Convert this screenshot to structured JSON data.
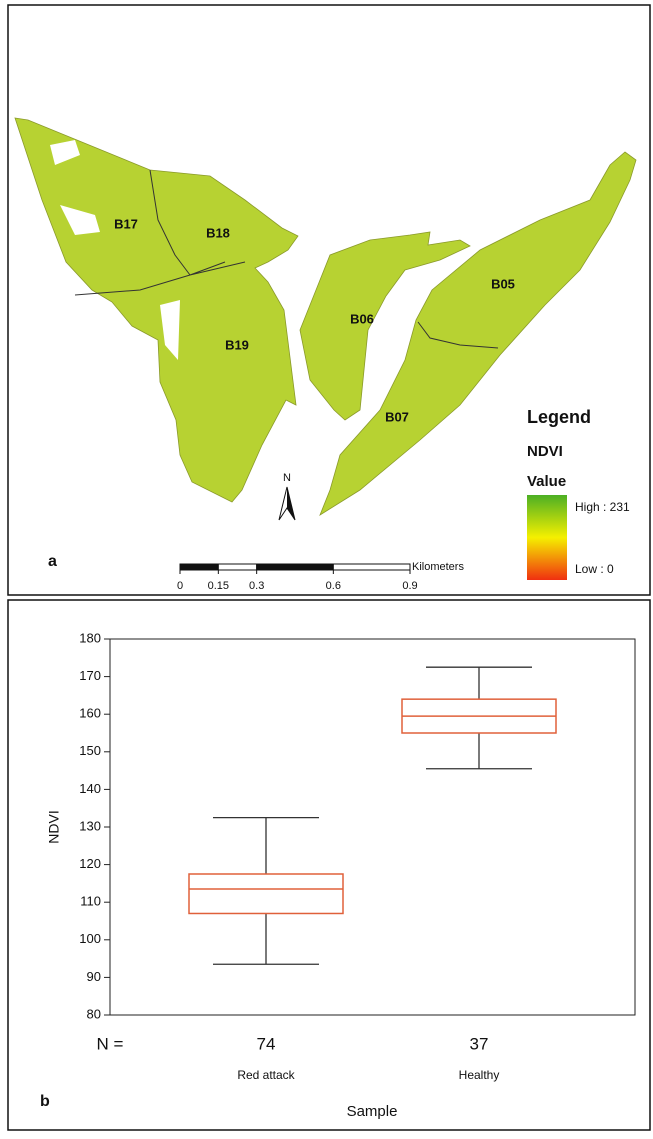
{
  "map": {
    "panel_label": "a",
    "blocks": [
      {
        "label": "B17"
      },
      {
        "label": "B18"
      },
      {
        "label": "B19"
      },
      {
        "label": "B06"
      },
      {
        "label": "B05"
      },
      {
        "label": "B07"
      }
    ],
    "legend": {
      "title": "Legend",
      "layer": "NDVI",
      "field": "Value",
      "high": "High : 231",
      "low": "Low : 0"
    },
    "north": "N",
    "scale_bar": {
      "ticks": [
        0,
        0.15,
        0.3,
        0.6,
        0.9
      ],
      "units": "Kilometers"
    }
  },
  "chart_data": {
    "type": "box",
    "panel_label": "b",
    "x_label": "Sample",
    "y_label": "NDVI",
    "categories": [
      "Red attack",
      "Healthy"
    ],
    "n_label": "N =",
    "n": [
      74,
      37
    ],
    "whislo": [
      93.5,
      145.5
    ],
    "q1": [
      107,
      155
    ],
    "med": [
      113.5,
      159.5
    ],
    "q3": [
      117.5,
      164
    ],
    "whishi": [
      132.5,
      172.5
    ],
    "box_color": "#e0603a",
    "whisker_color": "#333333",
    "ylim": [
      80,
      180
    ],
    "yticks": [
      80,
      90,
      100,
      110,
      120,
      130,
      140,
      150,
      160,
      170,
      180
    ]
  }
}
